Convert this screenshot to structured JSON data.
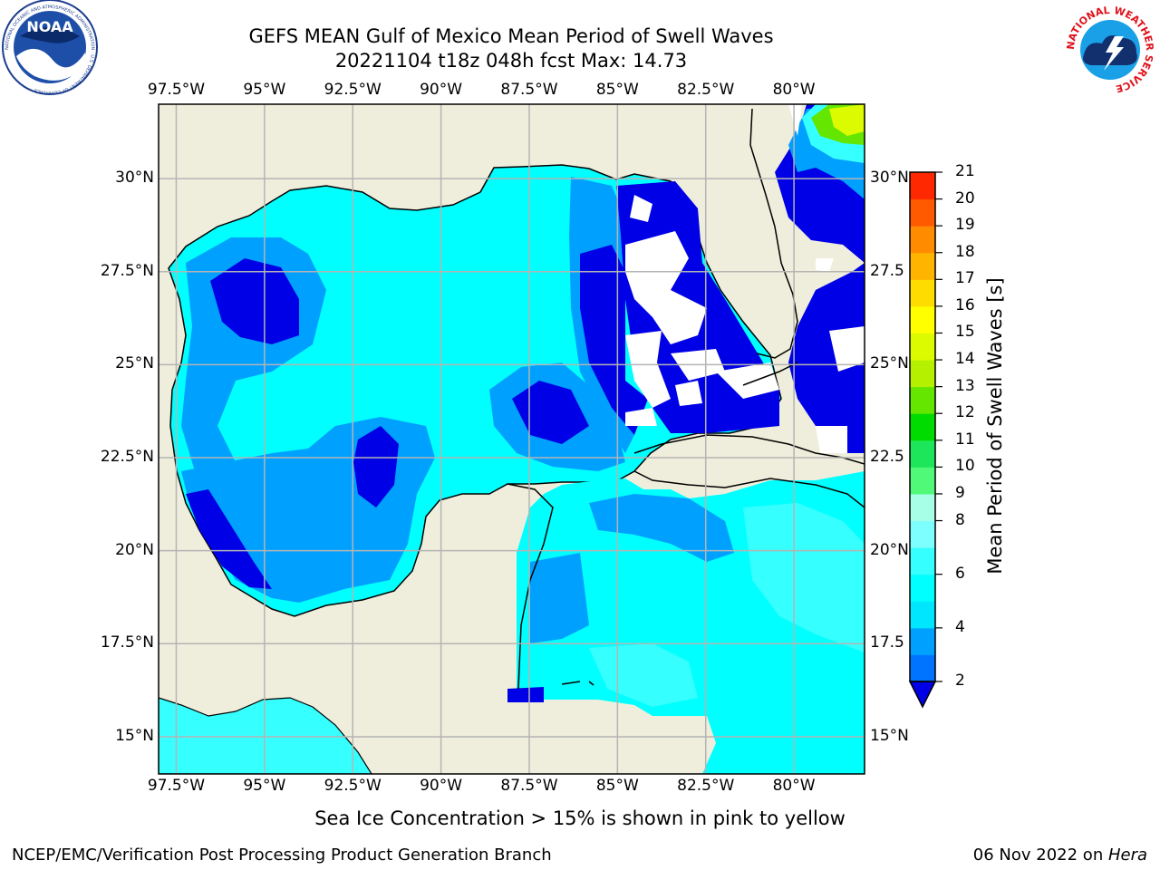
{
  "title": {
    "line1": "GEFS MEAN Gulf of Mexico Mean Period of Swell Waves",
    "line2": "20221104 t18z 048h fcst   Max: 14.73"
  },
  "map": {
    "lon_range": [
      -98.0,
      -78.0
    ],
    "lat_range": [
      14.0,
      32.0
    ],
    "gridlines": true,
    "lon_ticks": [
      {
        "lon": -97.5,
        "label": "97.5°W"
      },
      {
        "lon": -95.0,
        "label": "95°W"
      },
      {
        "lon": -92.5,
        "label": "92.5°W"
      },
      {
        "lon": -90.0,
        "label": "90°W"
      },
      {
        "lon": -87.5,
        "label": "87.5°W"
      },
      {
        "lon": -85.0,
        "label": "85°W"
      },
      {
        "lon": -82.5,
        "label": "82.5°W"
      },
      {
        "lon": -80.0,
        "label": "80°W"
      }
    ],
    "lat_ticks_left": [
      {
        "lat": 30.0,
        "label": "30°N"
      },
      {
        "lat": 27.5,
        "label": "27.5°N"
      },
      {
        "lat": 25.0,
        "label": "25°N"
      },
      {
        "lat": 22.5,
        "label": "22.5°N"
      },
      {
        "lat": 20.0,
        "label": "20°N"
      },
      {
        "lat": 17.5,
        "label": "17.5°N"
      },
      {
        "lat": 15.0,
        "label": "15°N"
      }
    ],
    "lat_ticks_right": [
      {
        "lat": 30.0,
        "label": "30°N"
      },
      {
        "lat": 27.5,
        "label": "27.5"
      },
      {
        "lat": 25.0,
        "label": "25°N"
      },
      {
        "lat": 22.5,
        "label": "22.5"
      },
      {
        "lat": 20.0,
        "label": "20°N"
      },
      {
        "lat": 17.5,
        "label": "17.5"
      },
      {
        "lat": 15.0,
        "label": "15°N"
      }
    ],
    "colors": {
      "land": "#efeedc",
      "grid": "#b4b4b4",
      "no_data": "#ffffff"
    }
  },
  "colorbar": {
    "label": "Mean Period of Swell Waves [s]",
    "levels": [
      2,
      3,
      4,
      5,
      6,
      7,
      8,
      9,
      10,
      11,
      12,
      13,
      14,
      15,
      16,
      17,
      18,
      19,
      20,
      21
    ],
    "tick_labels": [
      "2",
      "4",
      "6",
      "8",
      "9",
      "10",
      "11",
      "12",
      "13",
      "14",
      "15",
      "16",
      "17",
      "18",
      "19",
      "20",
      "21"
    ],
    "tick_values": [
      2,
      4,
      6,
      8,
      9,
      10,
      11,
      12,
      13,
      14,
      15,
      16,
      17,
      18,
      19,
      20,
      21
    ],
    "colors": [
      "#0073ff",
      "#00a0ff",
      "#00e6ff",
      "#00ffff",
      "#36ffff",
      "#7dffff",
      "#a8ffe8",
      "#50fa78",
      "#1ee65a",
      "#00dc00",
      "#64e600",
      "#b4f000",
      "#dcfa00",
      "#ffff00",
      "#ffdc00",
      "#ffb400",
      "#ff8c00",
      "#ff5a00",
      "#ff2800"
    ],
    "extend_color": "#0000e6"
  },
  "notes": {
    "sea_ice": "Sea Ice Concentration > 15% is shown in pink to yellow"
  },
  "footer": {
    "left": "NCEP/EMC/Verification Post Processing Product Generation Branch",
    "date": "06 Nov 2022 on ",
    "host": "Hera"
  },
  "logos": {
    "noaa": "NOAA",
    "noaa_ring": "NATIONAL OCEANIC AND ATMOSPHERIC ADMINISTRATION · U.S. DEPARTMENT OF COMMERCE",
    "nws_ring": "NATIONAL WEATHER SERVICE"
  }
}
